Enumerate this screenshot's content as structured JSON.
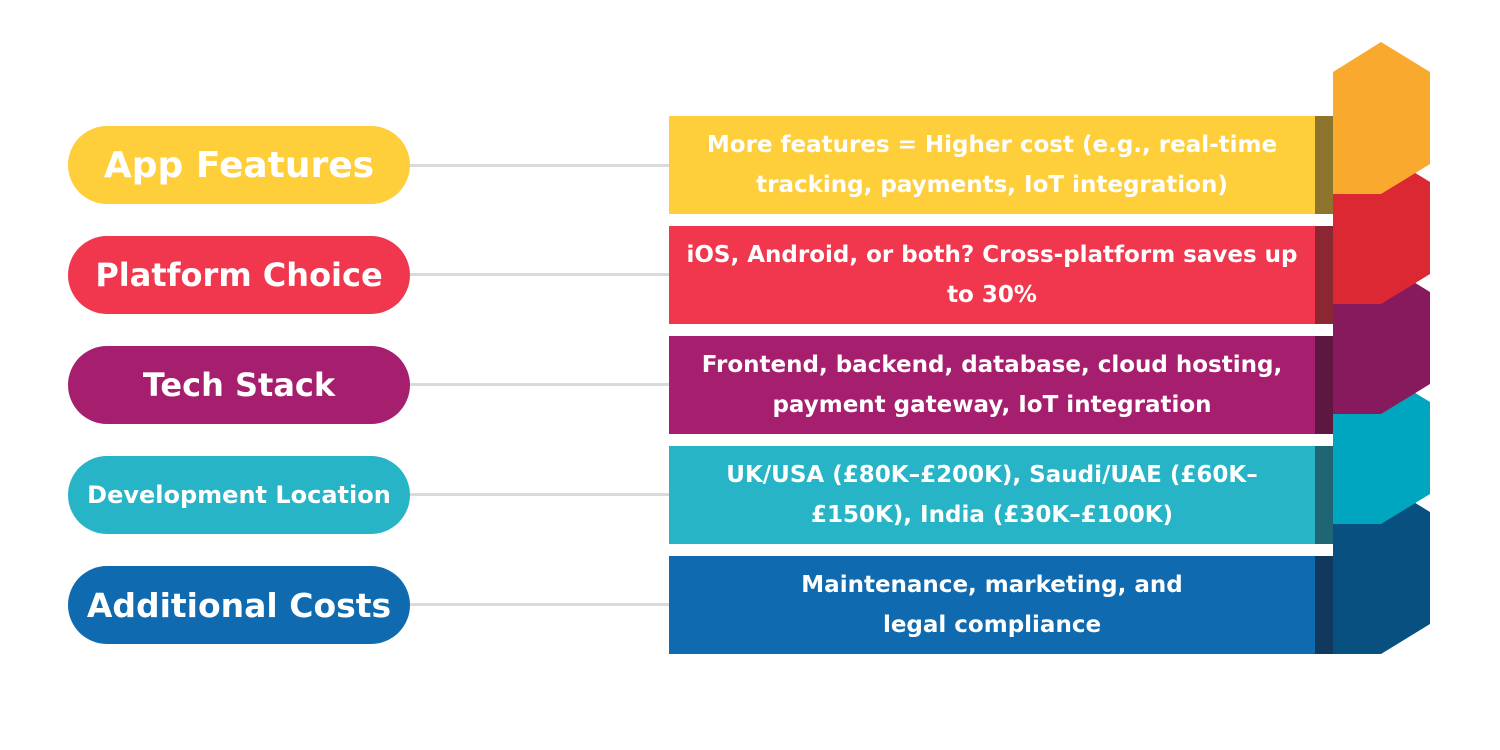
{
  "items": [
    {
      "label": "App Features",
      "text": "More features = Higher cost (e.g., real-time tracking, payments, IoT integration)",
      "color": "#FFCE3B",
      "side_color": "#8C742C",
      "hex_color": "#F9A92D"
    },
    {
      "label": "Platform Choice",
      "text": "iOS, Android, or both? Cross-platform saves up to 30%",
      "color": "#F0374E",
      "side_color": "#8A2733",
      "hex_color": "#DB2833"
    },
    {
      "label": "Tech Stack",
      "text": "Frontend, backend, database, cloud hosting, payment gateway, IoT integration",
      "color": "#A61F6E",
      "side_color": "#5E1740",
      "hex_color": "#861A5D"
    },
    {
      "label": "Development Location",
      "text": "UK/USA (£80K–£200K), Saudi/UAE (£60K–£150K), India (£30K–£100K)",
      "color": "#28B4C7",
      "side_color": "#1F6573",
      "hex_color": "#00A6BF"
    },
    {
      "label": "Additional Costs",
      "text": "Maintenance, marketing, and legal compliance",
      "color": "#0F6AAF",
      "side_color": "#11395E",
      "hex_color": "#08507F"
    }
  ]
}
